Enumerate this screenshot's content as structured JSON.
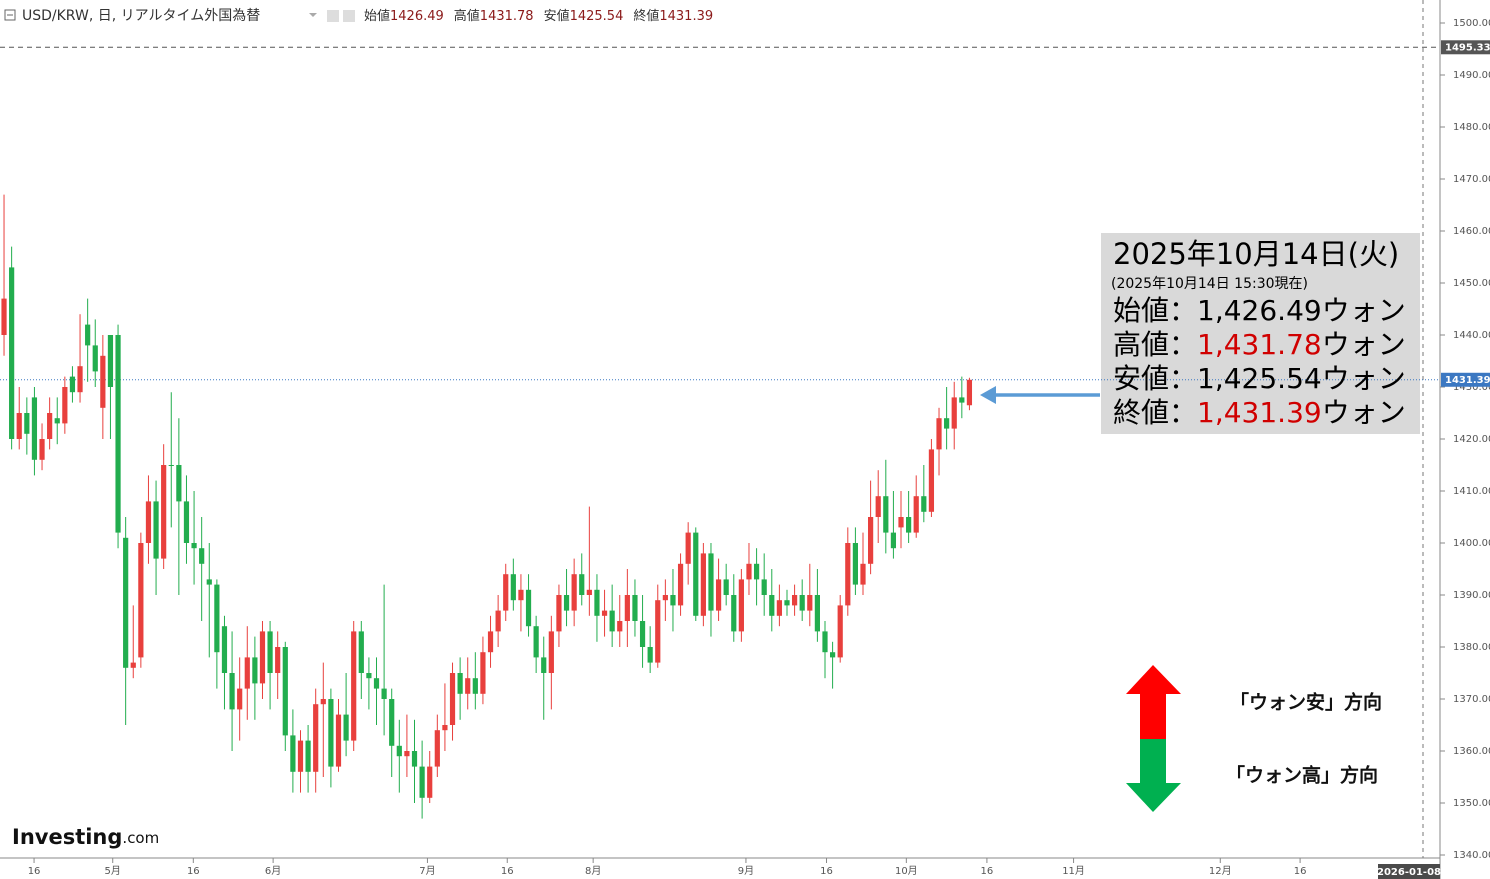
{
  "chart_data": {
    "type": "candlestick",
    "header": {
      "symbol": "USD/KRW, 日, リアルタイム外国為替",
      "ohlc": [
        {
          "label": "始値",
          "value": 1426.49
        },
        {
          "label": "高値",
          "value": 1431.78
        },
        {
          "label": "安値",
          "value": 1425.54
        },
        {
          "label": "終値",
          "value": 1431.39
        }
      ]
    },
    "up_color": "#e8403d",
    "down_color": "#22ad4e",
    "open": [
      1440,
      1453,
      1420,
      1425,
      1428,
      1416,
      1420,
      1424,
      1423,
      1432,
      1429,
      1442,
      1438,
      1426,
      1440,
      1440,
      1401,
      1376,
      1378,
      1400,
      1408,
      1397,
      1415,
      1415,
      1408,
      1400,
      1399,
      1393,
      1392,
      1384,
      1375,
      1368,
      1372,
      1378,
      1373,
      1383,
      1375,
      1380,
      1363,
      1356,
      1362,
      1356,
      1369,
      1370,
      1357,
      1367,
      1362,
      1383,
      1375,
      1374,
      1372,
      1370,
      1361,
      1359,
      1360,
      1357,
      1351,
      1357,
      1364,
      1365,
      1375,
      1371,
      1374,
      1371,
      1379,
      1383,
      1387,
      1394,
      1389,
      1391,
      1384,
      1378,
      1375,
      1383,
      1390,
      1387,
      1394,
      1390,
      1391,
      1386,
      1387,
      1383,
      1385,
      1390,
      1385,
      1380,
      1377,
      1389,
      1390,
      1388,
      1396,
      1402,
      1386,
      1398,
      1387,
      1393,
      1390,
      1383,
      1393,
      1396,
      1393,
      1390,
      1386,
      1389,
      1388,
      1390,
      1387,
      1390,
      1383,
      1379,
      1378,
      1388,
      1400,
      1392,
      1396,
      1405,
      1409,
      1402,
      1403,
      1405,
      1402,
      1409,
      1406,
      1418,
      1424,
      1422,
      1428,
      1426.49
    ],
    "high": [
      1467,
      1457,
      1430,
      1428,
      1430,
      1423,
      1428,
      1428,
      1432,
      1434,
      1444,
      1447,
      1443,
      1440,
      1440,
      1442,
      1405,
      1388,
      1402,
      1413,
      1412,
      1419,
      1429,
      1424,
      1413,
      1410,
      1405,
      1400,
      1393,
      1386,
      1383,
      1378,
      1384,
      1382,
      1385,
      1385,
      1383,
      1381,
      1368,
      1364,
      1365,
      1372,
      1377,
      1372,
      1370,
      1375,
      1385,
      1385,
      1378,
      1378,
      1392,
      1372,
      1366,
      1367,
      1366,
      1362,
      1360,
      1367,
      1373,
      1377,
      1378,
      1378,
      1379,
      1382,
      1386,
      1390,
      1396,
      1397,
      1394,
      1394,
      1386,
      1382,
      1386,
      1392,
      1395,
      1397,
      1398,
      1407,
      1394,
      1391,
      1392,
      1390,
      1395,
      1393,
      1390,
      1384,
      1392,
      1393,
      1395,
      1398,
      1404,
      1403,
      1400,
      1400,
      1397,
      1396,
      1394,
      1395,
      1400,
      1399,
      1398,
      1395,
      1392,
      1391,
      1392,
      1393,
      1396,
      1395,
      1385,
      1381,
      1390,
      1403,
      1403,
      1402,
      1412,
      1414,
      1416,
      1410,
      1410,
      1410,
      1413,
      1415,
      1420,
      1426,
      1430,
      1431,
      1432,
      1431.78
    ],
    "low": [
      1436,
      1418,
      1418,
      1417,
      1413,
      1414,
      1418,
      1419,
      1421,
      1427,
      1427,
      1431,
      1430,
      1420,
      1420,
      1399,
      1365,
      1374,
      1376,
      1396,
      1390,
      1395,
      1403,
      1390,
      1396,
      1392,
      1385,
      1378,
      1372,
      1368,
      1360,
      1362,
      1366,
      1366,
      1370,
      1368,
      1370,
      1360,
      1352,
      1352,
      1352,
      1352,
      1355,
      1353,
      1356,
      1359,
      1360,
      1370,
      1368,
      1365,
      1363,
      1355,
      1352,
      1355,
      1350,
      1347,
      1350,
      1355,
      1360,
      1362,
      1366,
      1368,
      1368,
      1369,
      1376,
      1380,
      1385,
      1387,
      1383,
      1382,
      1375,
      1366,
      1368,
      1380,
      1384,
      1384,
      1388,
      1386,
      1381,
      1382,
      1380,
      1380,
      1380,
      1382,
      1376,
      1375,
      1376,
      1385,
      1383,
      1386,
      1392,
      1385,
      1384,
      1382,
      1385,
      1388,
      1381,
      1381,
      1390,
      1388,
      1386,
      1383,
      1384,
      1386,
      1386,
      1385,
      1384,
      1381,
      1374,
      1372,
      1377,
      1386,
      1390,
      1390,
      1394,
      1400,
      1398,
      1397,
      1399,
      1400,
      1401,
      1404,
      1405,
      1413,
      1418,
      1418,
      1424,
      1425.54
    ],
    "close": [
      1447,
      1420,
      1425,
      1421,
      1416,
      1420,
      1425,
      1423,
      1430,
      1429,
      1434,
      1438,
      1433,
      1436,
      1430,
      1402,
      1376,
      1377,
      1400,
      1408,
      1397,
      1415,
      1415,
      1408,
      1400,
      1399,
      1396,
      1392,
      1379,
      1375,
      1368,
      1372,
      1378,
      1373,
      1383,
      1375,
      1380,
      1363,
      1356,
      1362,
      1356,
      1369,
      1370,
      1357,
      1367,
      1362,
      1383,
      1375,
      1374,
      1372,
      1370,
      1361,
      1359,
      1360,
      1357,
      1351,
      1357,
      1364,
      1365,
      1375,
      1371,
      1374,
      1371,
      1379,
      1383,
      1387,
      1394,
      1389,
      1391,
      1384,
      1378,
      1375,
      1383,
      1390,
      1387,
      1394,
      1390,
      1391,
      1386,
      1387,
      1383,
      1385,
      1390,
      1385,
      1380,
      1377,
      1389,
      1390,
      1388,
      1396,
      1402,
      1386,
      1398,
      1387,
      1393,
      1390,
      1383,
      1393,
      1396,
      1393,
      1390,
      1386,
      1389,
      1388,
      1390,
      1387,
      1390,
      1383,
      1379,
      1378,
      1388,
      1400,
      1392,
      1396,
      1405,
      1409,
      1402,
      1399,
      1405,
      1402,
      1409,
      1406,
      1418,
      1424,
      1422,
      1428,
      1427,
      1431.39
    ],
    "xlim": [
      -0.53,
      186.8
    ],
    "xticks": [
      {
        "value": 3.95,
        "label": "16"
      },
      {
        "value": 14.3,
        "label": "5月"
      },
      {
        "value": 24.9,
        "label": "16"
      },
      {
        "value": 35.4,
        "label": "6月"
      },
      {
        "value": 55.7,
        "label": "7月"
      },
      {
        "value": 66.2,
        "label": "16"
      },
      {
        "value": 77.5,
        "label": "8月"
      },
      {
        "value": 97.6,
        "label": "9月"
      },
      {
        "value": 108.2,
        "label": "16"
      },
      {
        "value": 118.7,
        "label": "10月"
      },
      {
        "value": 129.3,
        "label": "16"
      },
      {
        "value": 140.7,
        "label": "11月"
      },
      {
        "value": 160,
        "label": "12月"
      },
      {
        "value": 170.5,
        "label": "16"
      }
    ],
    "x_cursor_label": "2026-01-08",
    "ylim": [
      1340,
      1500
    ],
    "yticks": [
      {
        "value": 1340,
        "label": "1340.00"
      },
      {
        "value": 1350,
        "label": "1350.00"
      },
      {
        "value": 1360,
        "label": "1360.00"
      },
      {
        "value": 1370,
        "label": "1370.00"
      },
      {
        "value": 1380,
        "label": "1380.00"
      },
      {
        "value": 1390,
        "label": "1390.00"
      },
      {
        "value": 1400,
        "label": "1400.00"
      },
      {
        "value": 1410,
        "label": "1410.00"
      },
      {
        "value": 1420,
        "label": "1420.00"
      },
      {
        "value": 1430,
        "label": "1430.00"
      },
      {
        "value": 1440,
        "label": "1440.00"
      },
      {
        "value": 1450,
        "label": "1450.00"
      },
      {
        "value": 1460,
        "label": "1460.00"
      },
      {
        "value": 1470,
        "label": "1470.00"
      },
      {
        "value": 1480,
        "label": "1480.00"
      },
      {
        "value": 1490,
        "label": "1490.00"
      },
      {
        "value": 1500,
        "label": "1500.00"
      }
    ],
    "price_lines": [
      {
        "value": 1495.33,
        "style": "dashed",
        "color": "#555555"
      },
      {
        "value": 1431.39,
        "style": "dotted",
        "color": "#3b78c2"
      }
    ],
    "annotation": {
      "title": "2025年10月14日(火)",
      "subtitle": "(2025年10月14日 15:30現在)",
      "rows": [
        {
          "label": "始値：",
          "value": "1,426.49",
          "unit": "ウォン",
          "highlight": false
        },
        {
          "label": "高値：",
          "value": "1,431.78",
          "unit": "ウォン",
          "highlight": true
        },
        {
          "label": "安値：",
          "value": "1,425.54",
          "unit": "ウォン",
          "highlight": false
        },
        {
          "label": "終値：",
          "value": "1,431.39",
          "unit": "ウォン",
          "highlight": true
        }
      ]
    },
    "direction_labels": {
      "up": "「ウォン安」方向",
      "down": "「ウォン高」方向"
    },
    "logo": {
      "name": "Investing",
      "suffix": ".com"
    }
  }
}
